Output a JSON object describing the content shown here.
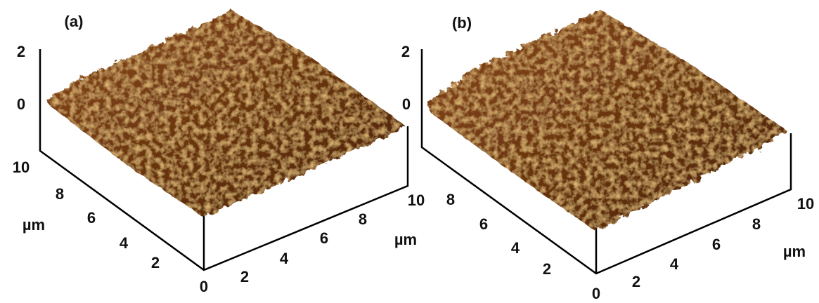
{
  "panels": [
    {
      "label": "(a)",
      "z_axis": {
        "ticks": [
          2,
          0
        ]
      },
      "left_axis": {
        "ticks": [
          10,
          8,
          6,
          4,
          2
        ],
        "unit": "µm"
      },
      "origin": 0,
      "right_axis": {
        "ticks": [
          2,
          4,
          6,
          8,
          10
        ],
        "unit": "µm"
      }
    },
    {
      "label": "(b)",
      "z_axis": {
        "ticks": [
          2,
          0
        ]
      },
      "left_axis": {
        "ticks": [
          8,
          6,
          4,
          2
        ],
        "unit": "µm"
      },
      "origin": 0,
      "right_axis": {
        "ticks": [
          2,
          4,
          6,
          8,
          10
        ],
        "unit": "µm"
      }
    }
  ]
}
